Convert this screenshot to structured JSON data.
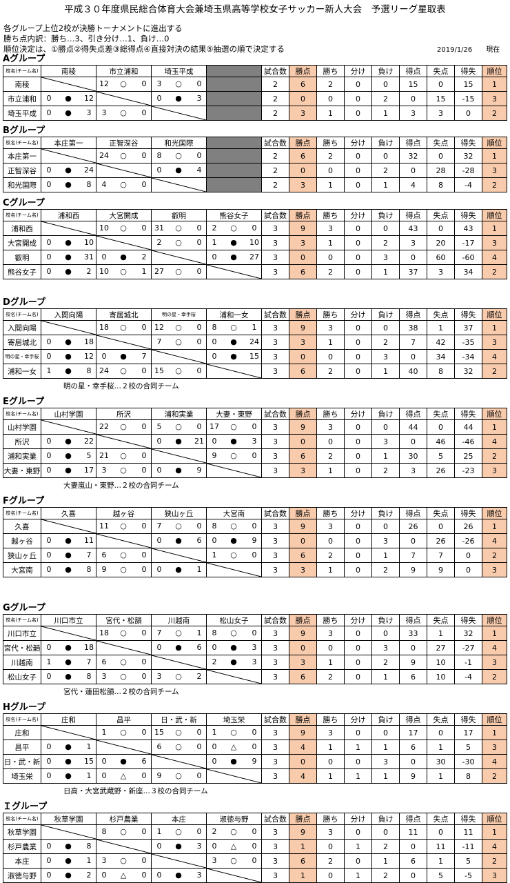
{
  "title": "平成３０年度県民総合体育大会兼埼玉県高等学校女子サッカー新人大会　予選リーグ星取表",
  "rules": [
    "各グループ上位2校が決勝トーナメントに進出する",
    "勝ち点内訳：勝ち…3、引き分け…1、負け…0",
    "順位決定は、①勝点②得失点差③総得点④直接対決の結果⑤抽選の順で決定する"
  ],
  "date": "2019/1/26　　現在",
  "header_labels": {
    "school": "校名(チーム名)",
    "stats": [
      "試合数",
      "勝点",
      "勝ち",
      "分け",
      "負け",
      "得点",
      "失点",
      "得失",
      "順位"
    ]
  },
  "groups": [
    {
      "name": "Aグループ",
      "teams": [
        "南稜",
        "市立浦和",
        "埼玉平成"
      ],
      "results": [
        [
          null,
          [
            "12",
            "○",
            "0"
          ],
          [
            "3",
            "○",
            "0"
          ]
        ],
        [
          [
            "0",
            "●",
            "12"
          ],
          null,
          [
            "0",
            "●",
            "3"
          ]
        ],
        [
          [
            "0",
            "●",
            "3"
          ],
          [
            "3",
            "○",
            "0"
          ],
          null
        ]
      ],
      "stats": [
        [
          "2",
          "6",
          "2",
          "0",
          "0",
          "15",
          "0",
          "15",
          "1"
        ],
        [
          "2",
          "0",
          "0",
          "0",
          "2",
          "0",
          "15",
          "-15",
          "3"
        ],
        [
          "2",
          "3",
          "1",
          "0",
          "1",
          "3",
          "3",
          "0",
          "2"
        ]
      ],
      "note": ""
    },
    {
      "name": "Bグループ",
      "teams": [
        "本庄第一",
        "正智深谷",
        "和光国際"
      ],
      "results": [
        [
          null,
          [
            "24",
            "○",
            "0"
          ],
          [
            "8",
            "○",
            "0"
          ]
        ],
        [
          [
            "0",
            "●",
            "24"
          ],
          null,
          [
            "0",
            "●",
            "4"
          ]
        ],
        [
          [
            "0",
            "●",
            "8"
          ],
          [
            "4",
            "○",
            "0"
          ],
          null
        ]
      ],
      "stats": [
        [
          "2",
          "6",
          "2",
          "0",
          "0",
          "32",
          "0",
          "32",
          "1"
        ],
        [
          "2",
          "0",
          "0",
          "0",
          "2",
          "0",
          "28",
          "-28",
          "3"
        ],
        [
          "2",
          "3",
          "1",
          "0",
          "1",
          "4",
          "8",
          "-4",
          "2"
        ]
      ],
      "note": ""
    },
    {
      "name": "Cグループ",
      "teams": [
        "浦和西",
        "大宮開成",
        "叡明",
        "熊谷女子"
      ],
      "results": [
        [
          null,
          [
            "10",
            "○",
            "0"
          ],
          [
            "31",
            "○",
            "0"
          ],
          [
            "2",
            "○",
            "0"
          ]
        ],
        [
          [
            "0",
            "●",
            "10"
          ],
          null,
          [
            "2",
            "○",
            "0"
          ],
          [
            "1",
            "●",
            "10"
          ]
        ],
        [
          [
            "0",
            "●",
            "31"
          ],
          [
            "0",
            "●",
            "2"
          ],
          null,
          [
            "0",
            "●",
            "27"
          ]
        ],
        [
          [
            "0",
            "●",
            "2"
          ],
          [
            "10",
            "○",
            "1"
          ],
          [
            "27",
            "○",
            "0"
          ],
          null
        ]
      ],
      "stats": [
        [
          "3",
          "9",
          "3",
          "0",
          "0",
          "43",
          "0",
          "43",
          "1"
        ],
        [
          "3",
          "3",
          "1",
          "0",
          "2",
          "3",
          "20",
          "-17",
          "3"
        ],
        [
          "3",
          "0",
          "0",
          "0",
          "3",
          "0",
          "60",
          "-60",
          "4"
        ],
        [
          "3",
          "6",
          "2",
          "0",
          "1",
          "37",
          "3",
          "34",
          "2"
        ]
      ],
      "note": ""
    },
    {
      "name": "Dグループ",
      "teams": [
        "入間向陽",
        "寄居城北",
        "明の星・幸手桜",
        "浦和一女"
      ],
      "results": [
        [
          null,
          [
            "18",
            "○",
            "0"
          ],
          [
            "12",
            "○",
            "0"
          ],
          [
            "8",
            "○",
            "1"
          ]
        ],
        [
          [
            "0",
            "●",
            "18"
          ],
          null,
          [
            "7",
            "○",
            "0"
          ],
          [
            "0",
            "●",
            "24"
          ]
        ],
        [
          [
            "0",
            "●",
            "12"
          ],
          [
            "0",
            "●",
            "7"
          ],
          null,
          [
            "0",
            "●",
            "15"
          ]
        ],
        [
          [
            "1",
            "●",
            "8"
          ],
          [
            "24",
            "○",
            "0"
          ],
          [
            "15",
            "○",
            "0"
          ],
          null
        ]
      ],
      "stats": [
        [
          "3",
          "9",
          "3",
          "0",
          "0",
          "38",
          "1",
          "37",
          "1"
        ],
        [
          "3",
          "3",
          "1",
          "0",
          "2",
          "7",
          "42",
          "-35",
          "3"
        ],
        [
          "3",
          "0",
          "0",
          "0",
          "3",
          "0",
          "34",
          "-34",
          "4"
        ],
        [
          "3",
          "6",
          "2",
          "0",
          "1",
          "40",
          "8",
          "32",
          "2"
        ]
      ],
      "note": "明の星・幸手桜…２校の合同チーム"
    },
    {
      "name": "Eグループ",
      "teams": [
        "山村学園",
        "所沢",
        "浦和実業",
        "大妻・東野"
      ],
      "results": [
        [
          null,
          [
            "22",
            "○",
            "0"
          ],
          [
            "5",
            "○",
            "0"
          ],
          [
            "17",
            "○",
            "0"
          ]
        ],
        [
          [
            "0",
            "●",
            "22"
          ],
          null,
          [
            "0",
            "●",
            "21"
          ],
          [
            "0",
            "●",
            "3"
          ]
        ],
        [
          [
            "0",
            "●",
            "5"
          ],
          [
            "21",
            "○",
            "0"
          ],
          null,
          [
            "9",
            "○",
            "0"
          ]
        ],
        [
          [
            "0",
            "●",
            "17"
          ],
          [
            "3",
            "○",
            "0"
          ],
          [
            "0",
            "●",
            "9"
          ],
          null
        ]
      ],
      "stats": [
        [
          "3",
          "9",
          "3",
          "0",
          "0",
          "44",
          "0",
          "44",
          "1"
        ],
        [
          "3",
          "0",
          "0",
          "0",
          "3",
          "0",
          "46",
          "-46",
          "4"
        ],
        [
          "3",
          "6",
          "2",
          "0",
          "1",
          "30",
          "5",
          "25",
          "2"
        ],
        [
          "3",
          "3",
          "1",
          "0",
          "2",
          "3",
          "26",
          "-23",
          "3"
        ]
      ],
      "note": "大妻嵐山・東野…２校の合同チーム"
    },
    {
      "name": "Fグループ",
      "teams": [
        "久喜",
        "越ヶ谷",
        "狭山ヶ丘",
        "大宮南"
      ],
      "results": [
        [
          null,
          [
            "11",
            "○",
            "0"
          ],
          [
            "7",
            "○",
            "0"
          ],
          [
            "8",
            "○",
            "0"
          ]
        ],
        [
          [
            "0",
            "●",
            "11"
          ],
          null,
          [
            "0",
            "●",
            "6"
          ],
          [
            "0",
            "●",
            "9"
          ]
        ],
        [
          [
            "0",
            "●",
            "7"
          ],
          [
            "6",
            "○",
            "0"
          ],
          null,
          [
            "1",
            "○",
            "0"
          ]
        ],
        [
          [
            "0",
            "●",
            "8"
          ],
          [
            "9",
            "○",
            "0"
          ],
          [
            "0",
            "●",
            "1"
          ],
          null
        ]
      ],
      "stats": [
        [
          "3",
          "9",
          "3",
          "0",
          "0",
          "26",
          "0",
          "26",
          "1"
        ],
        [
          "3",
          "0",
          "0",
          "0",
          "3",
          "0",
          "26",
          "-26",
          "4"
        ],
        [
          "3",
          "6",
          "2",
          "0",
          "1",
          "7",
          "7",
          "0",
          "2"
        ],
        [
          "3",
          "3",
          "1",
          "0",
          "2",
          "9",
          "9",
          "0",
          "3"
        ]
      ],
      "note": ""
    },
    {
      "name": "Gグループ",
      "teams": [
        "川口市立",
        "宮代・松韻",
        "川越南",
        "松山女子"
      ],
      "results": [
        [
          null,
          [
            "18",
            "○",
            "0"
          ],
          [
            "7",
            "○",
            "1"
          ],
          [
            "8",
            "○",
            "0"
          ]
        ],
        [
          [
            "0",
            "●",
            "18"
          ],
          null,
          [
            "0",
            "●",
            "6"
          ],
          [
            "0",
            "●",
            "3"
          ]
        ],
        [
          [
            "1",
            "●",
            "7"
          ],
          [
            "6",
            "○",
            "0"
          ],
          null,
          [
            "2",
            "●",
            "3"
          ]
        ],
        [
          [
            "0",
            "●",
            "8"
          ],
          [
            "3",
            "○",
            "0"
          ],
          [
            "3",
            "○",
            "2"
          ],
          null
        ]
      ],
      "stats": [
        [
          "3",
          "9",
          "3",
          "0",
          "0",
          "33",
          "1",
          "32",
          "1"
        ],
        [
          "3",
          "0",
          "0",
          "0",
          "3",
          "0",
          "27",
          "-27",
          "4"
        ],
        [
          "3",
          "3",
          "1",
          "0",
          "2",
          "9",
          "10",
          "-1",
          "3"
        ],
        [
          "3",
          "6",
          "2",
          "0",
          "1",
          "6",
          "10",
          "-4",
          "2"
        ]
      ],
      "note": "宮代・蓮田松韻…２校の合同チーム"
    },
    {
      "name": "Hグループ",
      "teams": [
        "庄和",
        "昌平",
        "日・武・新",
        "埼玉栄"
      ],
      "results": [
        [
          null,
          [
            "1",
            "○",
            "0"
          ],
          [
            "15",
            "○",
            "0"
          ],
          [
            "1",
            "○",
            "0"
          ]
        ],
        [
          [
            "0",
            "●",
            "1"
          ],
          null,
          [
            "6",
            "○",
            "0"
          ],
          [
            "0",
            "△",
            "0"
          ]
        ],
        [
          [
            "0",
            "●",
            "15"
          ],
          [
            "0",
            "●",
            "6"
          ],
          null,
          [
            "0",
            "●",
            "9"
          ]
        ],
        [
          [
            "0",
            "●",
            "1"
          ],
          [
            "0",
            "△",
            "0"
          ],
          [
            "9",
            "○",
            "0"
          ],
          null
        ]
      ],
      "stats": [
        [
          "3",
          "9",
          "3",
          "0",
          "0",
          "17",
          "0",
          "17",
          "1"
        ],
        [
          "3",
          "4",
          "1",
          "1",
          "1",
          "6",
          "1",
          "5",
          "3"
        ],
        [
          "3",
          "0",
          "0",
          "0",
          "3",
          "0",
          "30",
          "-30",
          "4"
        ],
        [
          "3",
          "4",
          "1",
          "1",
          "1",
          "9",
          "1",
          "8",
          "2"
        ]
      ],
      "note": "日高・大宮武蔵野・新座…３校の合同チーム"
    },
    {
      "name": "Ｉグループ",
      "teams": [
        "秋草学園",
        "杉戸農業",
        "本庄",
        "淑徳与野"
      ],
      "results": [
        [
          null,
          [
            "8",
            "○",
            "0"
          ],
          [
            "1",
            "○",
            "0"
          ],
          [
            "2",
            "○",
            "0"
          ]
        ],
        [
          [
            "0",
            "●",
            "8"
          ],
          null,
          [
            "0",
            "●",
            "3"
          ],
          [
            "0",
            "△",
            "0"
          ]
        ],
        [
          [
            "0",
            "●",
            "1"
          ],
          [
            "3",
            "○",
            "0"
          ],
          null,
          [
            "3",
            "○",
            "0"
          ]
        ],
        [
          [
            "0",
            "●",
            "2"
          ],
          [
            "0",
            "△",
            "0"
          ],
          [
            "0",
            "●",
            "3"
          ],
          null
        ]
      ],
      "stats": [
        [
          "3",
          "9",
          "3",
          "0",
          "0",
          "11",
          "0",
          "11",
          "1"
        ],
        [
          "3",
          "1",
          "0",
          "1",
          "2",
          "0",
          "11",
          "-11",
          "4"
        ],
        [
          "3",
          "6",
          "2",
          "0",
          "1",
          "6",
          "1",
          "5",
          "2"
        ],
        [
          "3",
          "1",
          "0",
          "1",
          "2",
          "0",
          "5",
          "-5",
          "3"
        ]
      ],
      "note": ""
    }
  ]
}
